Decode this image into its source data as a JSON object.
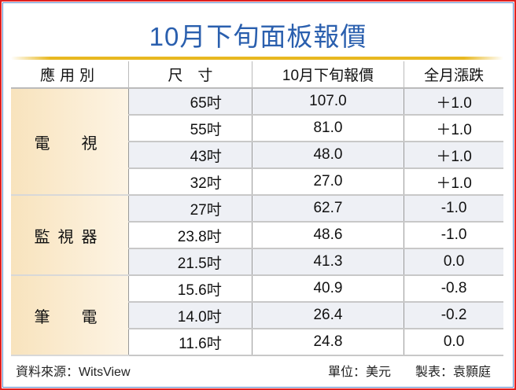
{
  "title": "10月下旬面板報價",
  "headers": [
    "應用別",
    "尺　寸",
    "10月下旬報價",
    "全月漲跌"
  ],
  "groups": [
    {
      "category": "電　視",
      "rows": [
        [
          "65吋",
          "107.0",
          "＋1.0"
        ],
        [
          "55吋",
          "81.0",
          "＋1.0"
        ],
        [
          "43吋",
          "48.0",
          "＋1.0"
        ],
        [
          "32吋",
          "27.0",
          "＋1.0"
        ]
      ]
    },
    {
      "category": "監視器",
      "rows": [
        [
          "27吋",
          "62.7",
          "-1.0"
        ],
        [
          "23.8吋",
          "48.6",
          "-1.0"
        ],
        [
          "21.5吋",
          "41.3",
          "0.0"
        ]
      ]
    },
    {
      "category": "筆　電",
      "rows": [
        [
          "15.6吋",
          "40.9",
          "-0.8"
        ],
        [
          "14.0吋",
          "26.4",
          "-0.2"
        ],
        [
          "11.6吋",
          "24.8",
          "0.0"
        ]
      ]
    }
  ],
  "footer": {
    "source": "資料來源：WitsView",
    "unit": "單位：美元",
    "author": "製表：袁顥庭"
  },
  "colors": {
    "title": "#2a5fae",
    "border_outer": "#e02020",
    "border_inner": "#5a86c8",
    "accent_line": "#e8b820"
  }
}
